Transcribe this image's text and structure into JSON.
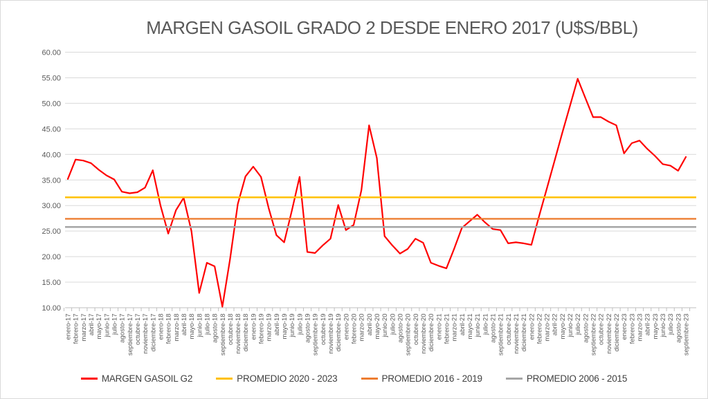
{
  "chart_data": {
    "type": "line",
    "title": "MARGEN GASOIL GRADO 2 DESDE ENERO 2017 (U$S/BBL)",
    "xlabel": "",
    "ylabel": "",
    "ylim": [
      10,
      60
    ],
    "ytick_step": 5,
    "grid": "horizontal",
    "legend_position": "bottom",
    "gridline_color": "#d9d9d9",
    "axis_line_color": "#bfbfbf",
    "axis_label_color": "#595959",
    "categories": [
      "enero-17",
      "febrero-17",
      "marzo-17",
      "abril-17",
      "mayo-17",
      "junio-17",
      "julio-17",
      "agosto-17",
      "septiembre-17",
      "octubre-17",
      "noviembre-17",
      "diciembre-17",
      "enero-18",
      "febrero-18",
      "marzo-18",
      "abril-18",
      "mayo-18",
      "junio-18",
      "julio-18",
      "agosto-18",
      "septiembre-18",
      "octubre-18",
      "noviembre-18",
      "diciembre-18",
      "enero-19",
      "febrero-19",
      "marzo-19",
      "abril-19",
      "mayo-19",
      "junio-19",
      "julio-19",
      "agosto-19",
      "septiembre-19",
      "octubre-19",
      "noviembre-19",
      "diciembre-19",
      "enero-20",
      "febrero-20",
      "marzo-20",
      "abril-20",
      "mayo-20",
      "junio-20",
      "julio-20",
      "agosto-20",
      "septiembre-20",
      "octubre-20",
      "noviembre-20",
      "diciembre-20",
      "enero-21",
      "febrero-21",
      "marzo-21",
      "abril-21",
      "mayo-21",
      "junio-21",
      "julio-21",
      "agosto-21",
      "septiembre-21",
      "octubre-21",
      "noviembre-21",
      "diciembre-21",
      "enero-22",
      "febrero-22",
      "marzo-22",
      "abril-22",
      "mayo-22",
      "junio-22",
      "julio-22",
      "agosto-22",
      "septiembre-22",
      "octubre-22",
      "noviembre-22",
      "diciembre-22",
      "enero-23",
      "febrero-23",
      "marzo-23",
      "abril-23",
      "mayo-23",
      "junio-23",
      "julio-23",
      "agosto-23",
      "septiembre-23"
    ],
    "series": [
      {
        "name": "MARGEN GASOIL G2",
        "color": "#ff0000",
        "values": [
          35.2,
          39.0,
          38.8,
          38.3,
          37.0,
          35.9,
          35.1,
          32.7,
          32.4,
          32.6,
          33.5,
          36.9,
          30.0,
          24.5,
          29.1,
          31.5,
          25.0,
          12.9,
          18.8,
          18.1,
          10.2,
          19.5,
          30.3,
          35.7,
          37.6,
          35.6,
          29.5,
          24.2,
          22.8,
          29.0,
          35.6,
          20.9,
          20.7,
          22.2,
          23.5,
          30.1,
          25.2,
          26.2,
          33.0,
          45.7,
          39.3,
          24.0,
          22.2,
          20.6,
          21.5,
          23.5,
          22.7,
          18.8,
          18.2,
          17.7,
          21.5,
          25.6,
          26.9,
          28.2,
          26.7,
          25.4,
          25.2,
          22.6,
          22.8,
          22.6,
          22.3,
          27.9,
          33.3,
          38.7,
          44.2,
          49.5,
          54.8,
          51.0,
          47.3,
          47.3,
          46.4,
          45.7,
          40.2,
          42.2,
          42.7,
          41.1,
          39.7,
          38.1,
          37.8,
          36.8,
          39.5
        ]
      },
      {
        "name": "PROMEDIO 2020 - 2023",
        "color": "#ffc000",
        "type": "constant",
        "value": 31.6
      },
      {
        "name": "PROMEDIO 2016 - 2019",
        "color": "#ed7d31",
        "type": "constant",
        "value": 27.4
      },
      {
        "name": "PROMEDIO 2006 - 2015",
        "color": "#a6a6a6",
        "type": "constant",
        "value": 25.8
      }
    ]
  }
}
